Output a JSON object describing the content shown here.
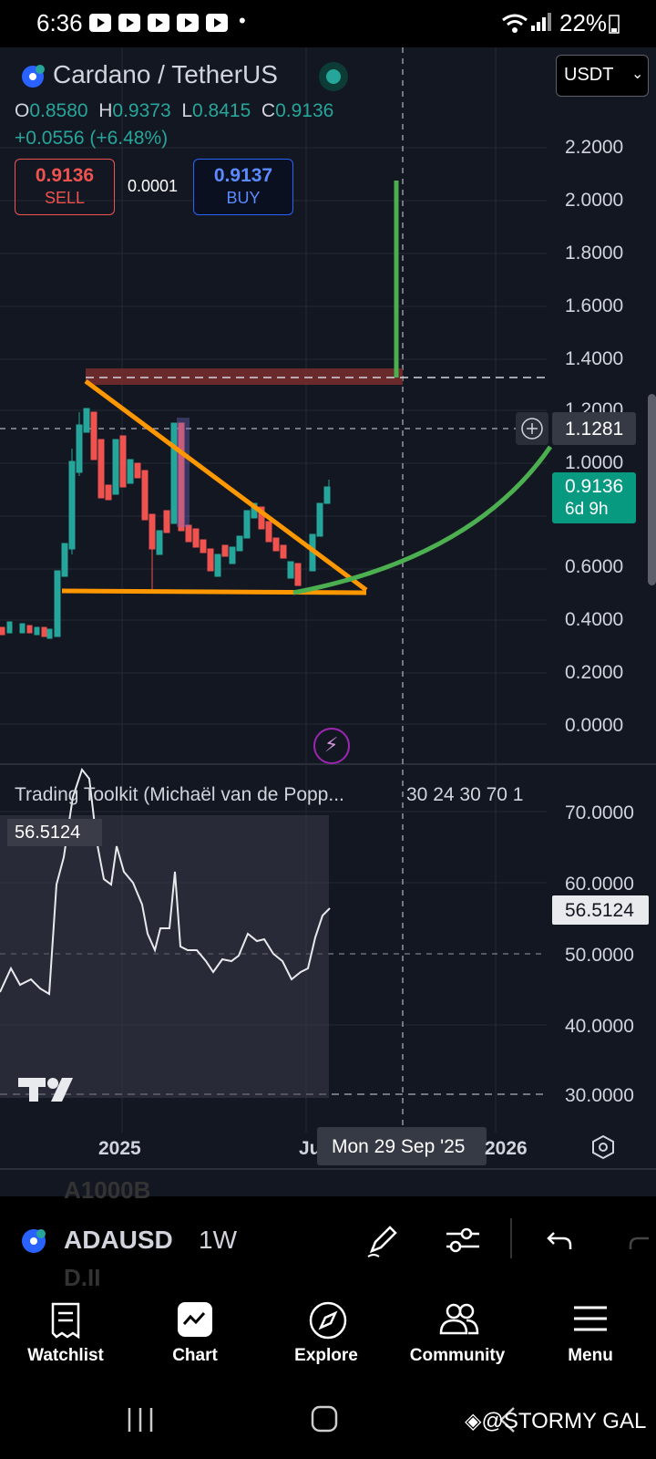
{
  "status_bar": {
    "time": "6:36",
    "dot": "•",
    "battery": "22%"
  },
  "header": {
    "symbol": "Cardano / TetherUS",
    "currency": "USDT",
    "ohlc": {
      "o_label": "O",
      "o": "0.8580",
      "h_label": "H",
      "h": "0.9373",
      "l_label": "L",
      "l": "0.8415",
      "c_label": "C",
      "c": "0.9136"
    },
    "change": "+0.0556 (+6.48%)",
    "sell_price": "0.9136",
    "sell_label": "SELL",
    "spread": "0.0001",
    "buy_price": "0.9137",
    "buy_label": "BUY"
  },
  "price_axis": {
    "labels": [
      "2.2000",
      "2.0000",
      "1.8000",
      "1.6000",
      "1.4000",
      "1.2000",
      "1.0000",
      "0.6000",
      "0.4000",
      "0.2000",
      "0.0000"
    ],
    "crosshair_price": "1.1281",
    "last_price": "0.9136",
    "countdown": "6d 9h"
  },
  "indicator": {
    "title": "Trading Toolkit (Michaël van de Popp...",
    "params": "30 24 30 70 1",
    "value": "56.5124",
    "axis_labels": [
      "70.0000",
      "60.0000",
      "50.0000",
      "40.0000",
      "30.0000"
    ]
  },
  "time_axis": {
    "label_2025": "2025",
    "label_jul": "Ju",
    "crosshair_date": "Mon 29 Sep '25",
    "label_2026": "2026"
  },
  "toolbar": {
    "ticker": "ADAUSD",
    "ticker_ghost_top": "A1000B",
    "ticker_ghost_bottom": "D.II",
    "interval": "1W"
  },
  "bottom_nav": [
    {
      "label": "Watchlist",
      "icon": "watchlist-icon"
    },
    {
      "label": "Chart",
      "icon": "chart-icon"
    },
    {
      "label": "Explore",
      "icon": "compass-icon"
    },
    {
      "label": "Community",
      "icon": "community-icon"
    },
    {
      "label": "Menu",
      "icon": "menu-icon"
    }
  ],
  "watermark": "@STORMY GAL",
  "colors": {
    "background": "#131722",
    "up": "#26a69a",
    "down": "#ef5350",
    "triangle": "#ff9800",
    "projection": "#4caf50",
    "resistance": "#7a2e2e",
    "buy_blue": "#2962ff"
  }
}
